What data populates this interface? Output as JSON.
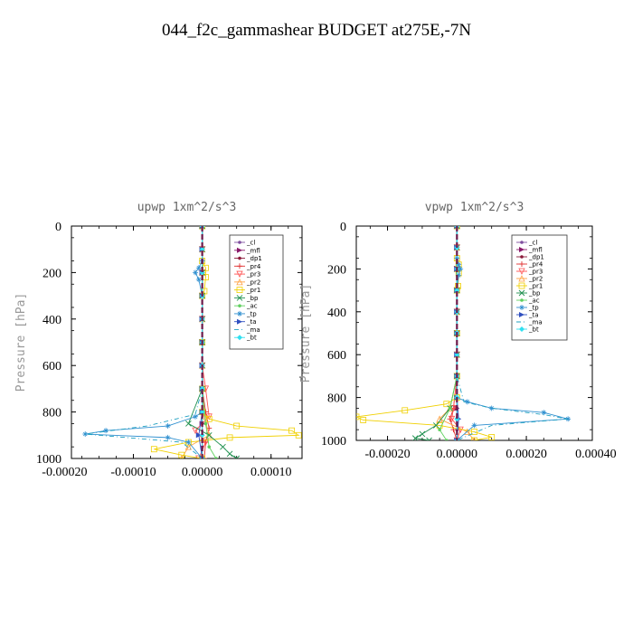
{
  "figure": {
    "title": "044_f2c_gammashear  BUDGET at275E,-7N"
  },
  "chart_data": [
    {
      "type": "line",
      "title": "upwp   1xm^2/s^3",
      "xlabel": "",
      "ylabel": "Pressure [hPa]",
      "xlim": [
        -0.00019,
        0.000145
      ],
      "ylim": [
        1000,
        0
      ],
      "y_inverted": true,
      "xticks": [
        -0.0002,
        -0.0001,
        0.0,
        0.0001
      ],
      "xtick_labels": [
        "-0.00020",
        "-0.00010",
        "0.00000",
        "0.00010"
      ],
      "yticks": [
        0,
        200,
        400,
        600,
        800,
        1000
      ],
      "ytick_labels": [
        "0",
        "200",
        "400",
        "600",
        "800",
        "1000"
      ],
      "legend_position": "upper-right",
      "series": [
        {
          "name": "_cl",
          "color": "#7f4f9f",
          "marker": "dot",
          "dash": "",
          "x": [
            0,
            0,
            0,
            0,
            0,
            0,
            0,
            0,
            0,
            0,
            0,
            0
          ],
          "y": [
            0,
            100,
            200,
            300,
            400,
            500,
            600,
            700,
            800,
            900,
            950,
            1000
          ]
        },
        {
          "name": "_mfl",
          "color": "#8b1a6b",
          "marker": "tri-right",
          "dash": "",
          "x": [
            0,
            0,
            0,
            0,
            0,
            0,
            0,
            0,
            0,
            0
          ],
          "y": [
            0,
            100,
            200,
            300,
            400,
            500,
            600,
            700,
            850,
            1000
          ]
        },
        {
          "name": "_dp1",
          "color": "#8b1a3a",
          "marker": "dot",
          "dash": "",
          "x": [
            0,
            0,
            0,
            0,
            0,
            0,
            0,
            0,
            0,
            0
          ],
          "y": [
            0,
            100,
            200,
            300,
            400,
            500,
            600,
            700,
            850,
            1000
          ]
        },
        {
          "name": "_pr4",
          "color": "#e03030",
          "marker": "plus",
          "dash": "",
          "x": [
            0,
            0,
            0,
            0,
            0,
            0,
            0,
            0,
            5e-06,
            1e-05,
            5e-06,
            3e-06
          ],
          "y": [
            0,
            100,
            200,
            300,
            400,
            500,
            600,
            700,
            800,
            870,
            930,
            1000
          ]
        },
        {
          "name": "_pr3",
          "color": "#ff5050",
          "marker": "tri-down",
          "dash": "",
          "x": [
            0,
            0,
            0,
            0,
            0,
            0,
            0,
            5e-06,
            1e-05,
            -1e-05,
            5e-06,
            -5e-06
          ],
          "y": [
            0,
            100,
            200,
            300,
            400,
            500,
            600,
            700,
            820,
            880,
            930,
            1000
          ]
        },
        {
          "name": "_pr2",
          "color": "#ffa040",
          "marker": "tri-up",
          "dash": "",
          "x": [
            0,
            0,
            0,
            0,
            0,
            0,
            0,
            0,
            3e-06,
            1e-05,
            -2e-05,
            -3e-05
          ],
          "y": [
            0,
            100,
            200,
            300,
            400,
            500,
            600,
            700,
            820,
            900,
            950,
            1000
          ]
        },
        {
          "name": "_pr1",
          "color": "#f0d000",
          "marker": "square",
          "dash": "",
          "x": [
            0,
            0,
            5e-06,
            5e-06,
            3e-06,
            0,
            0,
            0,
            0,
            1e-05,
            5e-05,
            0.00013,
            0.00014,
            4e-05,
            -2e-05,
            -7e-05,
            -3e-05,
            0
          ],
          "y": [
            0,
            150,
            180,
            220,
            280,
            300,
            500,
            700,
            800,
            830,
            860,
            880,
            900,
            910,
            930,
            960,
            985,
            1000
          ]
        },
        {
          "name": "_bp",
          "color": "#209050",
          "marker": "cross",
          "dash": "",
          "x": [
            0,
            0,
            0,
            0,
            0,
            0,
            0,
            0,
            -2e-05,
            1e-05,
            3e-05,
            4e-05,
            5e-05
          ],
          "y": [
            0,
            100,
            200,
            300,
            400,
            500,
            600,
            700,
            850,
            900,
            950,
            980,
            1000
          ]
        },
        {
          "name": "_ac",
          "color": "#60d060",
          "marker": "dot",
          "dash": "",
          "x": [
            0,
            0,
            0,
            0,
            0,
            0,
            0,
            0,
            5e-06,
            1e-05,
            2e-05
          ],
          "y": [
            0,
            100,
            200,
            300,
            400,
            500,
            600,
            700,
            850,
            950,
            1000
          ]
        },
        {
          "name": "_tp",
          "color": "#3090d0",
          "marker": "star",
          "dash": "",
          "x": [
            0,
            0,
            -5e-06,
            -1e-05,
            -5e-06,
            0,
            0,
            0,
            0,
            -1e-05,
            -5e-05,
            -0.00014,
            -0.00017,
            -5e-05,
            -2e-05,
            0
          ],
          "y": [
            0,
            150,
            180,
            200,
            230,
            300,
            500,
            700,
            800,
            820,
            860,
            880,
            895,
            910,
            930,
            1000
          ]
        },
        {
          "name": "_ta",
          "color": "#3050c0",
          "marker": "tri-right",
          "dash": "",
          "x": [
            0,
            0,
            0,
            0,
            0,
            0,
            0,
            0,
            0,
            -5e-06,
            0
          ],
          "y": [
            0,
            100,
            200,
            300,
            400,
            500,
            600,
            700,
            800,
            900,
            1000
          ]
        },
        {
          "name": "_ma",
          "color": "#20a0c0",
          "marker": "none",
          "dash": "5,3,1,3",
          "x": [
            0,
            0,
            0,
            0,
            0,
            0,
            0,
            0,
            -1e-05,
            -8e-05,
            -0.00017,
            -3e-05,
            0
          ],
          "y": [
            0,
            100,
            200,
            300,
            400,
            500,
            600,
            700,
            810,
            860,
            895,
            930,
            1000
          ]
        },
        {
          "name": "_bt",
          "color": "#30e0f0",
          "marker": "diamond",
          "dash": "",
          "x": [
            0,
            0,
            0,
            0,
            0,
            0,
            0,
            0,
            0,
            0,
            0
          ],
          "y": [
            0,
            100,
            200,
            300,
            400,
            500,
            600,
            700,
            800,
            900,
            1000
          ]
        },
        {
          "name": "",
          "color": "#6b1a4a",
          "marker": "none",
          "dash": "6,3",
          "x": [
            0,
            0
          ],
          "y": [
            0,
            1000
          ]
        }
      ]
    },
    {
      "type": "line",
      "title": "vpwp   1xm^2/s^3",
      "xlabel": "",
      "ylabel": "Pressure [hPa]",
      "xlim": [
        -0.00029,
        0.00039
      ],
      "ylim": [
        1000,
        0
      ],
      "y_inverted": true,
      "xticks": [
        -0.0002,
        0.0,
        0.0002,
        0.0004
      ],
      "xtick_labels": [
        "-0.00020",
        "0.00000",
        "0.00020",
        "0.00040"
      ],
      "yticks": [
        0,
        200,
        400,
        600,
        800,
        1000
      ],
      "ytick_labels": [
        "0",
        "200",
        "400",
        "600",
        "800",
        "1000"
      ],
      "legend_position": "upper-right",
      "series": [
        {
          "name": "_cl",
          "color": "#7f4f9f",
          "marker": "dot",
          "dash": "",
          "x": [
            0,
            0,
            0,
            0,
            0,
            0,
            0,
            0,
            0,
            0,
            0,
            0
          ],
          "y": [
            0,
            100,
            200,
            300,
            400,
            500,
            600,
            700,
            800,
            900,
            950,
            1000
          ]
        },
        {
          "name": "_mfl",
          "color": "#8b1a6b",
          "marker": "tri-right",
          "dash": "",
          "x": [
            0,
            0,
            0,
            0,
            0,
            0,
            0,
            0,
            0,
            0
          ],
          "y": [
            0,
            100,
            200,
            300,
            400,
            500,
            600,
            700,
            850,
            1000
          ]
        },
        {
          "name": "_dp1",
          "color": "#8b1a3a",
          "marker": "dot",
          "dash": "",
          "x": [
            0,
            0,
            0,
            0,
            0,
            0,
            0,
            0,
            0,
            0
          ],
          "y": [
            0,
            100,
            200,
            300,
            400,
            500,
            600,
            700,
            850,
            1000
          ]
        },
        {
          "name": "_pr4",
          "color": "#e03030",
          "marker": "plus",
          "dash": "",
          "x": [
            0,
            0,
            0,
            0,
            0,
            0,
            0,
            0,
            -1e-05,
            -2e-05,
            -1e-05,
            0
          ],
          "y": [
            0,
            100,
            200,
            300,
            400,
            500,
            600,
            700,
            850,
            900,
            950,
            1000
          ]
        },
        {
          "name": "_pr3",
          "color": "#ff5050",
          "marker": "tri-down",
          "dash": "",
          "x": [
            0,
            0,
            0,
            0,
            0,
            0,
            0,
            0,
            -1e-05,
            -1.5e-05,
            1e-05,
            0
          ],
          "y": [
            0,
            100,
            200,
            300,
            400,
            500,
            600,
            700,
            850,
            900,
            950,
            1000
          ]
        },
        {
          "name": "_pr2",
          "color": "#ffa040",
          "marker": "tri-up",
          "dash": "",
          "x": [
            0,
            0,
            0,
            0,
            0,
            0,
            0,
            0,
            -2e-05,
            -5e-05,
            3e-05,
            5e-05
          ],
          "y": [
            0,
            100,
            200,
            300,
            400,
            500,
            600,
            700,
            850,
            900,
            960,
            1000
          ]
        },
        {
          "name": "_pr1",
          "color": "#f0d000",
          "marker": "square",
          "dash": "",
          "x": [
            0,
            0,
            5e-06,
            5e-06,
            3e-06,
            0,
            0,
            0,
            0,
            -3e-05,
            -0.00015,
            -0.00029,
            -0.00027,
            -5e-05,
            5e-05,
            0.0001,
            5e-05
          ],
          "y": [
            0,
            150,
            180,
            220,
            280,
            300,
            500,
            700,
            800,
            830,
            860,
            890,
            905,
            930,
            960,
            985,
            1000
          ]
        },
        {
          "name": "_bp",
          "color": "#209050",
          "marker": "cross",
          "dash": "",
          "x": [
            0,
            0,
            0,
            0,
            0,
            0,
            0,
            0,
            -2e-05,
            -6e-05,
            -0.0001,
            -0.00012,
            -8e-05
          ],
          "y": [
            0,
            100,
            200,
            300,
            400,
            500,
            600,
            700,
            850,
            930,
            970,
            990,
            1000
          ]
        },
        {
          "name": "_ac",
          "color": "#60d060",
          "marker": "dot",
          "dash": "",
          "x": [
            0,
            0,
            0,
            0,
            0,
            0,
            0,
            0,
            -2e-05,
            -5e-05,
            -3e-05
          ],
          "y": [
            0,
            100,
            200,
            300,
            400,
            500,
            600,
            700,
            850,
            950,
            1000
          ]
        },
        {
          "name": "_tp",
          "color": "#3090d0",
          "marker": "star",
          "dash": "",
          "x": [
            0,
            0,
            5e-06,
            1e-05,
            5e-06,
            0,
            0,
            0,
            0,
            3e-05,
            0.0001,
            0.00025,
            0.00032,
            5e-05,
            0
          ],
          "y": [
            0,
            150,
            180,
            200,
            230,
            300,
            500,
            700,
            800,
            820,
            850,
            870,
            900,
            930,
            1000
          ]
        },
        {
          "name": "_ta",
          "color": "#3050c0",
          "marker": "tri-right",
          "dash": "",
          "x": [
            0,
            0,
            0,
            0,
            0,
            0,
            0,
            0,
            0,
            5e-06,
            0
          ],
          "y": [
            0,
            100,
            200,
            300,
            400,
            500,
            600,
            700,
            800,
            900,
            1000
          ]
        },
        {
          "name": "_ma",
          "color": "#20a0c0",
          "marker": "none",
          "dash": "5,3,1,3",
          "x": [
            0,
            0,
            0,
            0,
            0,
            0,
            0,
            0,
            2e-05,
            0.0001,
            0.00025,
            0.00032,
            0.0001,
            0
          ],
          "y": [
            0,
            100,
            200,
            300,
            400,
            500,
            600,
            700,
            820,
            850,
            880,
            900,
            930,
            1000
          ]
        },
        {
          "name": "_bt",
          "color": "#30e0f0",
          "marker": "diamond",
          "dash": "",
          "x": [
            0,
            0,
            0,
            0,
            0,
            0,
            0,
            0,
            0,
            0,
            0
          ],
          "y": [
            0,
            100,
            200,
            300,
            400,
            500,
            600,
            700,
            800,
            900,
            1000
          ]
        },
        {
          "name": "",
          "color": "#6b1a4a",
          "marker": "none",
          "dash": "6,3",
          "x": [
            0,
            0
          ],
          "y": [
            0,
            1000
          ]
        }
      ]
    }
  ]
}
